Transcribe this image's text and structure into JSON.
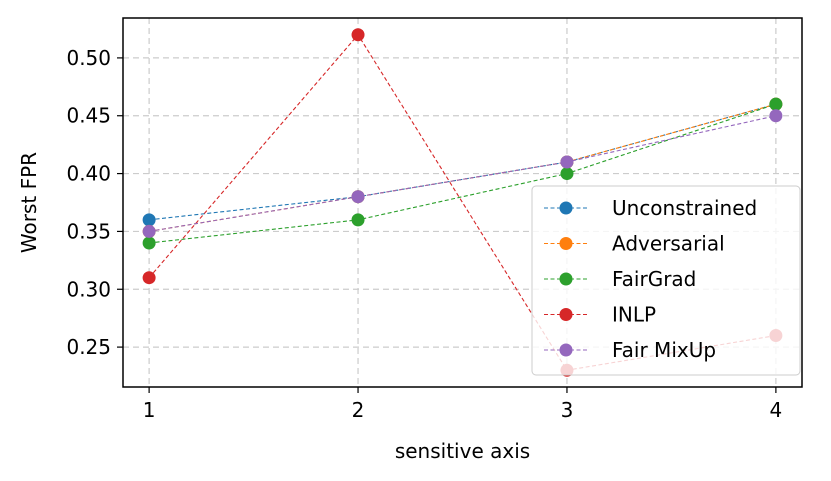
{
  "chart_data": {
    "type": "line",
    "xlabel": "sensitive axis",
    "ylabel": "Worst FPR",
    "x": [
      1,
      2,
      3,
      4
    ],
    "xticks": [
      "1",
      "2",
      "3",
      "4"
    ],
    "yticks": [
      "0.25",
      "0.30",
      "0.35",
      "0.40",
      "0.45",
      "0.50"
    ],
    "ytick_values": [
      0.25,
      0.3,
      0.35,
      0.4,
      0.45,
      0.5
    ],
    "xlim": [
      0.875,
      4.125
    ],
    "ylim": [
      0.2155,
      0.5345
    ],
    "grid": true,
    "legend_position": "lower-right",
    "series": [
      {
        "name": "Unconstrained",
        "color": "#1f77b4",
        "values": [
          0.36,
          0.38,
          0.41,
          0.46
        ]
      },
      {
        "name": "Adversarial",
        "color": "#ff7f0e",
        "values": [
          0.35,
          0.38,
          0.41,
          0.46
        ]
      },
      {
        "name": "FairGrad",
        "color": "#2ca02c",
        "values": [
          0.34,
          0.36,
          0.4,
          0.46
        ]
      },
      {
        "name": "INLP",
        "color": "#d62728",
        "values": [
          0.31,
          0.52,
          0.23,
          0.26
        ]
      },
      {
        "name": "Fair MixUp",
        "color": "#9467bd",
        "values": [
          0.35,
          0.38,
          0.41,
          0.45
        ]
      }
    ]
  }
}
